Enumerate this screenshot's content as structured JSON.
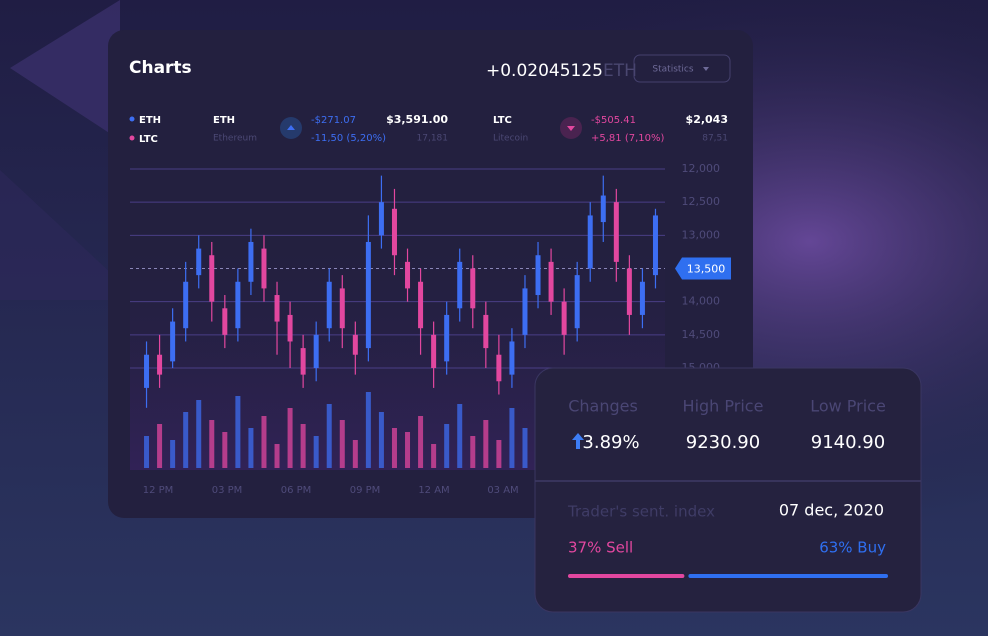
{
  "header": {
    "title": "Charts",
    "change": "+0.02045125",
    "unit": "ETH",
    "button": "Statistics"
  },
  "legend": [
    "ETH",
    "LTC"
  ],
  "tickers": [
    {
      "symbol": "ETH",
      "name": "Ethereum",
      "change": "-$271.07",
      "change_pct": "-11,50 (5,20%)",
      "price": "$3,591.00",
      "volume": "17,181"
    },
    {
      "symbol": "LTC",
      "name": "Litecoin",
      "change": "-$505.41",
      "change_pct": "+5,81 (7,10%)",
      "price": "$2,043",
      "volume": "87,51"
    }
  ],
  "chart_data": {
    "type": "candlestick",
    "up_color": "#3d6ef2",
    "down_color": "#e2479f",
    "ylim": [
      15000,
      12000
    ],
    "yticks": [
      {
        "value": 12000,
        "label": "12,000"
      },
      {
        "value": 12500,
        "label": "12,500"
      },
      {
        "value": 13000,
        "label": "13,000"
      },
      {
        "value": 13500,
        "label": "13,500"
      },
      {
        "value": 14000,
        "label": "14,000"
      },
      {
        "value": 14500,
        "label": "14,500"
      },
      {
        "value": 15000,
        "label": "15,000"
      }
    ],
    "current": 3,
    "categories": [
      "12 PM",
      "03 PM",
      "06 PM",
      "09 PM",
      "12 AM",
      "03 AM"
    ],
    "open": [
      15300,
      14800,
      14900,
      14400,
      13600,
      13300,
      14100,
      14400,
      13700,
      13200,
      13900,
      14200,
      14700,
      15000,
      14400,
      13800,
      14500,
      14700,
      13000,
      12600,
      13400,
      13700,
      14500,
      14900,
      14100,
      13500,
      14200,
      14800,
      15100,
      14500,
      13900,
      13400,
      14000,
      14400,
      13500,
      12800,
      12500,
      13500,
      14200,
      13600
    ],
    "close": [
      14800,
      15100,
      14300,
      13700,
      13200,
      14000,
      14500,
      13700,
      13100,
      13800,
      14300,
      14600,
      15100,
      14500,
      13700,
      14400,
      14800,
      13100,
      12500,
      13300,
      13800,
      14400,
      15000,
      14200,
      13400,
      14100,
      14700,
      15200,
      14600,
      13800,
      13300,
      14000,
      14500,
      13600,
      12700,
      12400,
      13400,
      14200,
      13700,
      12700
    ],
    "high": [
      15600,
      15300,
      15000,
      14600,
      13800,
      14300,
      14700,
      14600,
      13900,
      14000,
      14800,
      15000,
      15300,
      15200,
      14600,
      14700,
      15100,
      14900,
      13200,
      13600,
      14000,
      14800,
      15300,
      15100,
      14300,
      14400,
      15000,
      15400,
      15300,
      14700,
      14100,
      14200,
      14800,
      14600,
      13700,
      13100,
      13700,
      14500,
      14400,
      13800
    ],
    "low": [
      14600,
      14500,
      14100,
      13400,
      13000,
      13100,
      13900,
      13500,
      12900,
      13000,
      13700,
      14000,
      14500,
      14300,
      13500,
      13600,
      14300,
      12700,
      12100,
      12300,
      13200,
      13500,
      14300,
      14000,
      13200,
      13300,
      14000,
      14500,
      14400,
      13600,
      13100,
      13200,
      13800,
      13400,
      12500,
      12100,
      12300,
      13300,
      13500,
      12600
    ],
    "volumes": [
      40,
      55,
      35,
      70,
      85,
      60,
      45,
      90,
      50,
      65,
      30,
      75,
      55,
      40,
      80,
      60,
      35,
      95,
      70,
      50,
      45,
      65,
      30,
      55,
      80,
      40,
      60,
      35,
      75,
      50,
      45,
      70,
      40,
      60,
      85,
      55,
      35,
      65,
      50,
      45
    ]
  },
  "stats": {
    "headers": [
      "Changes",
      "High Price",
      "Low Price"
    ],
    "values": [
      "3.89%",
      "9230.90",
      "9140.90"
    ],
    "index_label": "Trader's sent. index",
    "date": "07 dec, 2020",
    "sentiment": {
      "values": [
        37,
        63
      ],
      "value_labels": [
        "37% Sell",
        "63% Buy"
      ],
      "colors": [
        "#e2479f",
        "#2f6ff0"
      ]
    }
  }
}
